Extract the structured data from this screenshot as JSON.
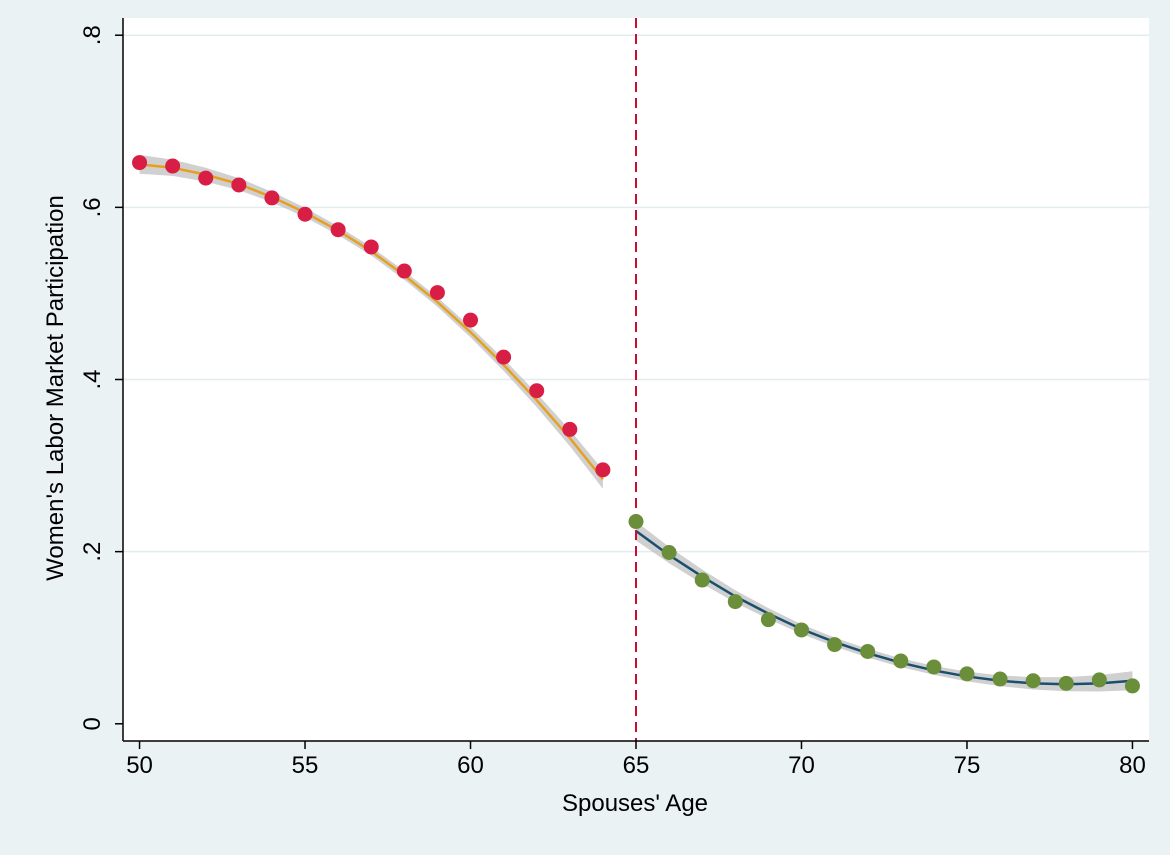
{
  "chart_data": {
    "type": "scatter",
    "xlabel": "Spouses' Age",
    "ylabel": "Women's Labor Market Participation",
    "xlim": [
      49.5,
      80.5
    ],
    "ylim": [
      -0.02,
      0.82
    ],
    "x_ticks": [
      50,
      55,
      60,
      65,
      70,
      75,
      80
    ],
    "x_tick_labels": [
      "50",
      "55",
      "60",
      "65",
      "70",
      "75",
      "80"
    ],
    "y_ticks": [
      0,
      0.2,
      0.4,
      0.6,
      0.8
    ],
    "y_tick_labels": [
      "0",
      ".2",
      ".4",
      ".6",
      ".8"
    ],
    "grid": true,
    "legend": "none",
    "cutoff": 65,
    "series": [
      {
        "x": [
          50,
          51,
          52,
          53,
          54,
          55,
          56,
          57,
          58,
          59,
          60,
          61,
          62,
          63,
          64
        ],
        "y": [
          0.652,
          0.648,
          0.634,
          0.626,
          0.611,
          0.592,
          0.574,
          0.554,
          0.526,
          0.501,
          0.469,
          0.426,
          0.387,
          0.342,
          0.295
        ],
        "marker_color": "#d81e45",
        "fit": {
          "x": [
            50,
            51,
            52,
            53,
            54,
            55,
            56,
            57,
            58,
            59,
            60,
            61,
            62,
            63,
            64
          ],
          "y": [
            0.65,
            0.646,
            0.638,
            0.627,
            0.612,
            0.594,
            0.573,
            0.549,
            0.521,
            0.49,
            0.455,
            0.417,
            0.376,
            0.332,
            0.284
          ],
          "color": "#e6a020"
        }
      },
      {
        "x": [
          65,
          66,
          67,
          68,
          69,
          70,
          71,
          72,
          73,
          74,
          75,
          76,
          77,
          78,
          79,
          80
        ],
        "y": [
          0.235,
          0.199,
          0.167,
          0.142,
          0.121,
          0.109,
          0.092,
          0.084,
          0.073,
          0.066,
          0.058,
          0.052,
          0.05,
          0.047,
          0.051,
          0.044
        ],
        "marker_color": "#6b8e3a",
        "fit": {
          "x": [
            65,
            66,
            67,
            68,
            69,
            70,
            71,
            72,
            73,
            74,
            75,
            76,
            77,
            78,
            79,
            80
          ],
          "y": [
            0.224,
            0.196,
            0.171,
            0.148,
            0.128,
            0.11,
            0.095,
            0.082,
            0.071,
            0.062,
            0.055,
            0.05,
            0.047,
            0.046,
            0.047,
            0.05
          ],
          "color": "#1a4f70"
        }
      }
    ],
    "colors": {
      "background": "#eaf2f3",
      "plot_area": "#ffffff",
      "gridline": "#e3ecee",
      "cutoff_line": "#c8102e",
      "confidence_band": "#c0c0c0"
    }
  }
}
